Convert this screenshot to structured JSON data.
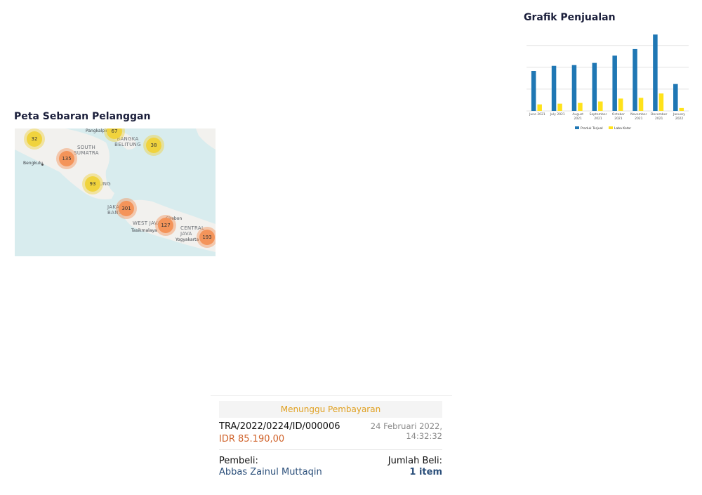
{
  "map": {
    "title": "Peta Sebaran Pelanggan",
    "region_labels": [
      "SOUTH SUMATRA",
      "BANGKA BELITUNG",
      "LAMPUNG",
      "JAKARTA BANTEN",
      "WEST JAVA",
      "CENTRAL JAVA"
    ],
    "cities": [
      "Pangkalpinang",
      "Bengkulu",
      "Cirebon",
      "Tasikmalaya",
      "Yogyakarta"
    ],
    "clusters": [
      {
        "count": "67",
        "color": "yellow"
      },
      {
        "count": "32",
        "color": "yellow"
      },
      {
        "count": "38",
        "color": "yellow"
      },
      {
        "count": "135",
        "color": "orange"
      },
      {
        "count": "93",
        "color": "yellow"
      },
      {
        "count": "301",
        "color": "orange"
      },
      {
        "count": "127",
        "color": "orange"
      },
      {
        "count": "193",
        "color": "orange"
      }
    ]
  },
  "chart_title": "Grafik Penjualan",
  "chart_data": {
    "type": "bar",
    "title": "Grafik Penjualan",
    "categories": [
      [
        "June 2021"
      ],
      [
        "July 2021"
      ],
      [
        "August",
        "2021"
      ],
      [
        "September",
        "2021"
      ],
      [
        "October",
        "2021"
      ],
      [
        "November",
        "2021"
      ],
      [
        "December",
        "2021"
      ],
      [
        "January",
        "2022"
      ]
    ],
    "series": [
      {
        "name": "Produk Terjual",
        "color": "#1f77b4",
        "values": [
          55,
          62,
          63,
          66,
          76,
          85,
          105,
          37
        ]
      },
      {
        "name": "Laba Kotor",
        "color": "#ffe21a",
        "values": [
          9,
          10,
          11,
          13,
          17,
          18,
          24,
          4
        ]
      }
    ],
    "ylim": [
      0,
      110
    ],
    "grid": true,
    "legend_position": "bottom"
  },
  "transaction": {
    "status": "Menunggu Pembayaran",
    "id": "TRA/2022/0224/ID/000006",
    "amount": "IDR 85.190,00",
    "date": "24 Februari 2022,",
    "time": "14:32:32",
    "buyer_label": "Pembeli:",
    "buyer_name": "Abbas Zainul Muttaqin",
    "qty_label": "Jumlah Beli:",
    "qty_value": "1 item",
    "colors": {
      "status": "#e0a020",
      "amount": "#d0622a",
      "link": "#2b4f7a"
    }
  }
}
